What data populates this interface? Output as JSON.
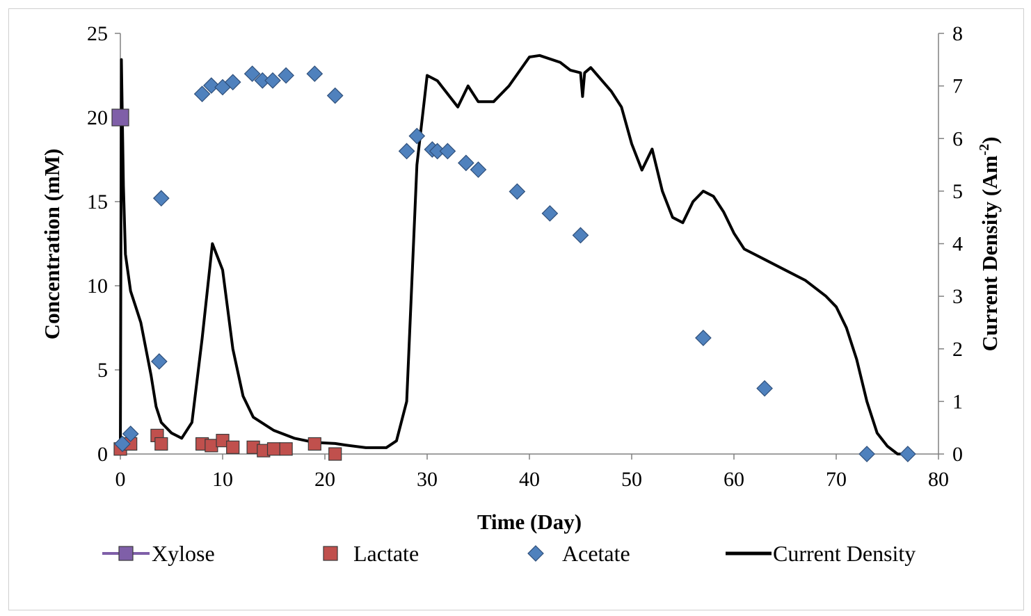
{
  "chart_data": {
    "type": "scatter",
    "xlabel": "Time (Day)",
    "ylabel": "Concentration  (mM)",
    "y2label_main": "Current  Density (Am",
    "y2label_sup": "-2",
    "y2label_end": ")",
    "xlim": [
      0,
      80
    ],
    "ylim": [
      0,
      25
    ],
    "y2lim": [
      0,
      8
    ],
    "xticks": [
      0,
      10,
      20,
      30,
      40,
      50,
      60,
      70,
      80
    ],
    "yticks": [
      0,
      5,
      10,
      15,
      20,
      25
    ],
    "y2ticks": [
      0,
      1,
      2,
      3,
      4,
      5,
      6,
      7,
      8
    ],
    "legend_position": "bottom",
    "grid": false,
    "series": [
      {
        "name": "Xylose",
        "marker": "square",
        "color": "#7f5fa8",
        "axis": "left",
        "points": [
          [
            0,
            20.0
          ]
        ]
      },
      {
        "name": "Lactate",
        "marker": "square",
        "color": "#c0504d",
        "axis": "left",
        "points": [
          [
            0,
            0.3
          ],
          [
            1,
            0.6
          ],
          [
            3.6,
            1.1
          ],
          [
            4,
            0.6
          ],
          [
            8,
            0.6
          ],
          [
            8.9,
            0.5
          ],
          [
            10,
            0.8
          ],
          [
            11,
            0.4
          ],
          [
            13,
            0.4
          ],
          [
            14,
            0.2
          ],
          [
            15,
            0.3
          ],
          [
            16.2,
            0.3
          ],
          [
            19,
            0.6
          ],
          [
            21,
            0.0
          ]
        ]
      },
      {
        "name": "Acetate",
        "marker": "diamond",
        "color": "#4f81bd",
        "axis": "left",
        "points": [
          [
            0.2,
            0.6
          ],
          [
            1,
            1.2
          ],
          [
            3.8,
            5.5
          ],
          [
            4,
            15.2
          ],
          [
            8,
            21.4
          ],
          [
            8.9,
            21.9
          ],
          [
            10,
            21.8
          ],
          [
            11,
            22.1
          ],
          [
            12.9,
            22.6
          ],
          [
            13.9,
            22.2
          ],
          [
            14.9,
            22.2
          ],
          [
            16.2,
            22.5
          ],
          [
            19,
            22.6
          ],
          [
            21,
            21.3
          ],
          [
            28,
            18.0
          ],
          [
            29,
            18.9
          ],
          [
            30.5,
            18.1
          ],
          [
            31,
            18.0
          ],
          [
            32,
            18.0
          ],
          [
            33.8,
            17.3
          ],
          [
            35,
            16.9
          ],
          [
            38.8,
            15.6
          ],
          [
            42,
            14.3
          ],
          [
            45,
            13.0
          ],
          [
            57,
            6.9
          ],
          [
            63,
            3.9
          ],
          [
            73,
            0.0
          ],
          [
            77,
            0.0
          ]
        ]
      },
      {
        "name": "Current Density",
        "type": "line",
        "color": "#000000",
        "axis": "right",
        "points": [
          [
            0,
            0
          ],
          [
            0.1,
            7.5
          ],
          [
            0.3,
            5.1
          ],
          [
            0.5,
            3.8
          ],
          [
            1,
            3.1
          ],
          [
            1.5,
            2.8
          ],
          [
            2,
            2.5
          ],
          [
            3,
            1.5
          ],
          [
            3.5,
            0.9
          ],
          [
            4,
            0.6
          ],
          [
            5,
            0.4
          ],
          [
            6,
            0.3
          ],
          [
            7,
            0.6
          ],
          [
            8,
            2.2
          ],
          [
            9,
            4.0
          ],
          [
            10,
            3.5
          ],
          [
            11,
            2.0
          ],
          [
            12,
            1.1
          ],
          [
            13,
            0.7
          ],
          [
            15,
            0.45
          ],
          [
            17,
            0.3
          ],
          [
            19,
            0.22
          ],
          [
            21,
            0.2
          ],
          [
            22,
            0.17
          ],
          [
            24,
            0.12
          ],
          [
            26,
            0.12
          ],
          [
            27,
            0.25
          ],
          [
            28,
            1.0
          ],
          [
            29,
            5.5
          ],
          [
            30,
            7.2
          ],
          [
            31,
            7.1
          ],
          [
            33,
            6.6
          ],
          [
            34,
            7.0
          ],
          [
            35,
            6.7
          ],
          [
            36.5,
            6.7
          ],
          [
            38,
            7.0
          ],
          [
            40,
            7.55
          ],
          [
            41,
            7.58
          ],
          [
            43,
            7.45
          ],
          [
            44,
            7.3
          ],
          [
            45,
            7.25
          ],
          [
            45.2,
            6.8
          ],
          [
            45.4,
            7.25
          ],
          [
            46,
            7.35
          ],
          [
            48,
            6.9
          ],
          [
            49,
            6.6
          ],
          [
            50,
            5.9
          ],
          [
            51,
            5.4
          ],
          [
            52,
            5.8
          ],
          [
            53,
            5.0
          ],
          [
            54,
            4.5
          ],
          [
            55,
            4.4
          ],
          [
            56,
            4.8
          ],
          [
            57,
            5.0
          ],
          [
            58,
            4.9
          ],
          [
            59,
            4.6
          ],
          [
            60,
            4.2
          ],
          [
            61,
            3.9
          ],
          [
            62,
            3.8
          ],
          [
            63,
            3.7
          ],
          [
            65,
            3.5
          ],
          [
            67,
            3.3
          ],
          [
            69,
            3.0
          ],
          [
            70,
            2.8
          ],
          [
            71,
            2.4
          ],
          [
            72,
            1.8
          ],
          [
            73,
            1.0
          ],
          [
            74,
            0.4
          ],
          [
            75,
            0.15
          ],
          [
            76,
            0.0
          ],
          [
            77,
            0.0
          ]
        ]
      }
    ]
  }
}
